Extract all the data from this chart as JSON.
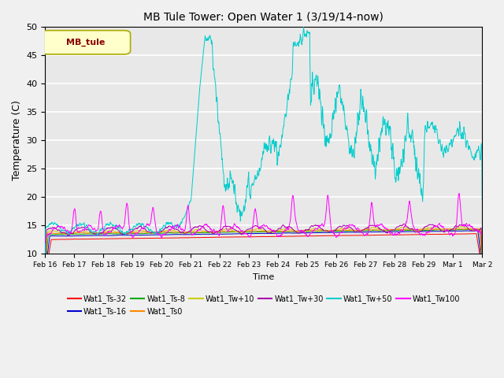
{
  "title": "MB Tule Tower: Open Water 1 (3/19/14-now)",
  "xlabel": "Time",
  "ylabel": "Temperature (C)",
  "ylim": [
    10,
    50
  ],
  "yticks": [
    10,
    15,
    20,
    25,
    30,
    35,
    40,
    45,
    50
  ],
  "axes_facecolor": "#e8e8e8",
  "legend_label": "MB_tule",
  "date_labels": [
    "Feb 16",
    "Feb 17",
    "Feb 18",
    "Feb 19",
    "Feb 20",
    "Feb 21",
    "Feb 22",
    "Feb 23",
    "Feb 24",
    "Feb 25",
    "Feb 26",
    "Feb 27",
    "Feb 28",
    "Feb 29",
    "Mar 1",
    "Mar 2"
  ],
  "series": [
    {
      "label": "Wat1_Ts-32",
      "color": "#ff0000"
    },
    {
      "label": "Wat1_Ts-16",
      "color": "#0000cc"
    },
    {
      "label": "Wat1_Ts-8",
      "color": "#00aa00"
    },
    {
      "label": "Wat1_Ts0",
      "color": "#ff8800"
    },
    {
      "label": "Wat1_Tw+10",
      "color": "#cccc00"
    },
    {
      "label": "Wat1_Tw+30",
      "color": "#aa00aa"
    },
    {
      "label": "Wat1_Tw+50",
      "color": "#00cccc"
    },
    {
      "label": "Wat1_Tw100",
      "color": "#ff00ff"
    }
  ]
}
